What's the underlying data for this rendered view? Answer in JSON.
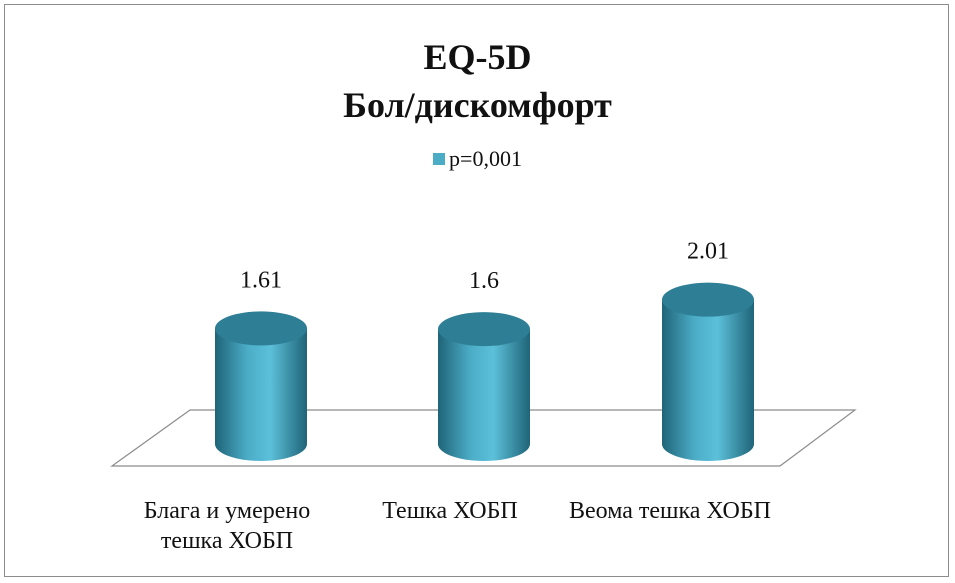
{
  "chart_data": {
    "type": "bar",
    "title": "EQ-5D",
    "subtitle": "Бол/дискомфорт",
    "categories": [
      "Блага и умерено тешка ХОБП",
      "Тешка ХОБП",
      "Веома тешка ХОБП"
    ],
    "series": [
      {
        "name": "p=0,001",
        "values": [
          1.61,
          1.6,
          2.01
        ],
        "labels": [
          "1.61",
          "1.6",
          "2.01"
        ]
      }
    ],
    "legend_position": "top",
    "grid": false,
    "bar_style": "3d-cylinder",
    "colors": {
      "series": "#4bacc6",
      "series_top": "#2e7f96",
      "series_shadow": "#1f6478"
    }
  }
}
